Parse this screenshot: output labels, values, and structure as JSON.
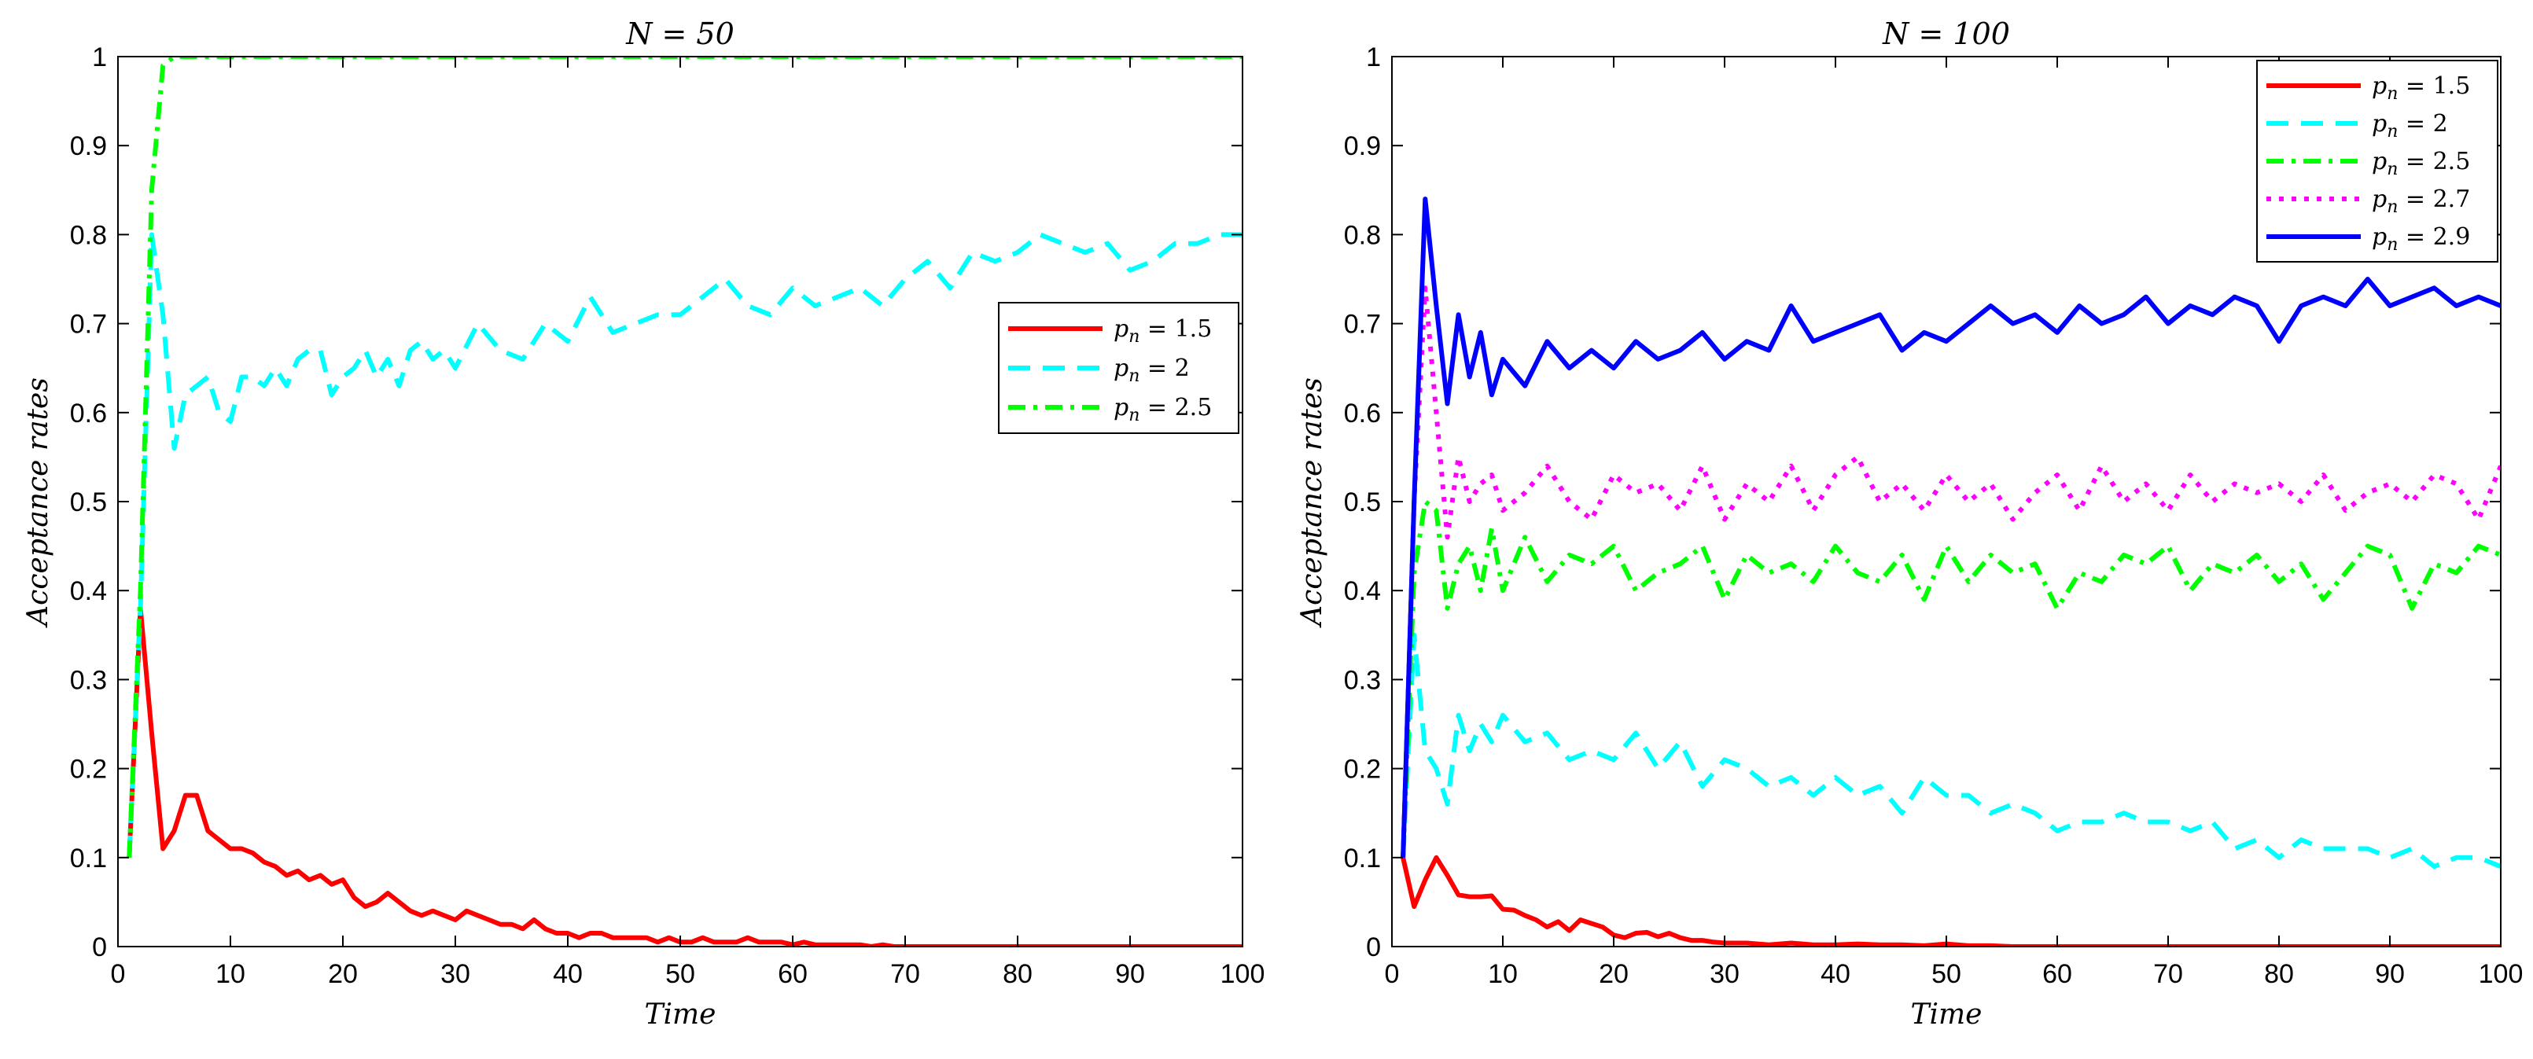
{
  "chart_data": [
    {
      "type": "line",
      "title": "N = 50",
      "xlabel": "Time",
      "ylabel": "Acceptance rates",
      "xlim": [
        0,
        100
      ],
      "ylim": [
        0,
        1
      ],
      "xticks": [
        0,
        10,
        20,
        30,
        40,
        50,
        60,
        70,
        80,
        90,
        100
      ],
      "yticks": [
        0,
        0.1,
        0.2,
        0.3,
        0.4,
        0.5,
        0.6,
        0.7,
        0.8,
        0.9,
        1
      ],
      "grid": false,
      "legend_position": "right",
      "series": [
        {
          "name": "p_n = 1.5",
          "color": "#ff0000",
          "style": "solid",
          "x": [
            1,
            2,
            3,
            4,
            5,
            6,
            7,
            8,
            9,
            10,
            11,
            12,
            13,
            14,
            15,
            16,
            17,
            18,
            19,
            20,
            21,
            22,
            23,
            24,
            25,
            26,
            27,
            28,
            29,
            30,
            31,
            32,
            33,
            34,
            35,
            36,
            37,
            38,
            39,
            40,
            41,
            42,
            43,
            44,
            45,
            46,
            47,
            48,
            49,
            50,
            51,
            52,
            53,
            54,
            55,
            56,
            57,
            58,
            59,
            60,
            61,
            62,
            63,
            64,
            65,
            66,
            67,
            68,
            69,
            70,
            75,
            80,
            85,
            90,
            95,
            100
          ],
          "y": [
            0.1,
            0.38,
            0.24,
            0.11,
            0.13,
            0.17,
            0.17,
            0.13,
            0.12,
            0.11,
            0.11,
            0.105,
            0.095,
            0.09,
            0.08,
            0.085,
            0.075,
            0.08,
            0.07,
            0.075,
            0.055,
            0.045,
            0.05,
            0.06,
            0.05,
            0.04,
            0.035,
            0.04,
            0.035,
            0.03,
            0.04,
            0.035,
            0.03,
            0.025,
            0.025,
            0.02,
            0.03,
            0.02,
            0.015,
            0.015,
            0.01,
            0.015,
            0.015,
            0.01,
            0.01,
            0.01,
            0.01,
            0.005,
            0.01,
            0.005,
            0.005,
            0.01,
            0.005,
            0.005,
            0.005,
            0.01,
            0.005,
            0.005,
            0.005,
            0.002,
            0.005,
            0.002,
            0.002,
            0.002,
            0.002,
            0.002,
            0,
            0.002,
            0,
            0,
            0,
            0,
            0,
            0,
            0,
            0
          ]
        },
        {
          "name": "p_n = 2",
          "color": "#00ffff",
          "style": "dashed",
          "x": [
            1,
            2,
            3,
            4,
            5,
            6,
            7,
            8,
            9,
            10,
            11,
            12,
            13,
            14,
            15,
            16,
            17,
            18,
            19,
            20,
            21,
            22,
            23,
            24,
            25,
            26,
            27,
            28,
            29,
            30,
            32,
            34,
            36,
            38,
            40,
            42,
            44,
            46,
            48,
            50,
            52,
            54,
            56,
            58,
            60,
            62,
            64,
            66,
            68,
            70,
            72,
            74,
            76,
            78,
            80,
            82,
            84,
            86,
            88,
            90,
            92,
            94,
            96,
            98,
            100
          ],
          "y": [
            0.1,
            0.38,
            0.8,
            0.71,
            0.56,
            0.62,
            0.63,
            0.64,
            0.6,
            0.59,
            0.64,
            0.64,
            0.63,
            0.65,
            0.63,
            0.66,
            0.67,
            0.67,
            0.62,
            0.64,
            0.65,
            0.67,
            0.64,
            0.66,
            0.63,
            0.67,
            0.68,
            0.66,
            0.67,
            0.65,
            0.7,
            0.67,
            0.66,
            0.7,
            0.68,
            0.73,
            0.69,
            0.7,
            0.71,
            0.71,
            0.73,
            0.75,
            0.72,
            0.71,
            0.74,
            0.72,
            0.73,
            0.74,
            0.72,
            0.75,
            0.77,
            0.74,
            0.78,
            0.77,
            0.78,
            0.8,
            0.79,
            0.78,
            0.79,
            0.76,
            0.77,
            0.79,
            0.79,
            0.8,
            0.8
          ]
        },
        {
          "name": "p_n = 2.5",
          "color": "#00ff00",
          "style": "dashdot",
          "x": [
            1,
            2,
            3,
            4,
            5,
            6,
            7,
            10,
            20,
            30,
            40,
            50,
            60,
            70,
            80,
            90,
            100
          ],
          "y": [
            0.1,
            0.4,
            0.85,
            0.99,
            1,
            1,
            1,
            1,
            1,
            1,
            1,
            1,
            1,
            1,
            1,
            1,
            1
          ]
        }
      ]
    },
    {
      "type": "line",
      "title": "N = 100",
      "xlabel": "Time",
      "ylabel": "Acceptance rates",
      "xlim": [
        0,
        100
      ],
      "ylim": [
        0,
        1
      ],
      "xticks": [
        0,
        10,
        20,
        30,
        40,
        50,
        60,
        70,
        80,
        90,
        100
      ],
      "yticks": [
        0,
        0.1,
        0.2,
        0.3,
        0.4,
        0.5,
        0.6,
        0.7,
        0.8,
        0.9,
        1
      ],
      "grid": false,
      "legend_position": "top-right",
      "series": [
        {
          "name": "p_n = 1.5",
          "color": "#ff0000",
          "style": "solid",
          "x": [
            1,
            2,
            3,
            4,
            5,
            6,
            7,
            8,
            9,
            10,
            11,
            12,
            13,
            14,
            15,
            16,
            17,
            18,
            19,
            20,
            21,
            22,
            23,
            24,
            25,
            26,
            27,
            28,
            29,
            30,
            32,
            34,
            36,
            38,
            40,
            42,
            44,
            46,
            48,
            50,
            52,
            54,
            56,
            60,
            70,
            80,
            90,
            100
          ],
          "y": [
            0.1,
            0.045,
            0.075,
            0.1,
            0.08,
            0.058,
            0.056,
            0.056,
            0.057,
            0.042,
            0.041,
            0.035,
            0.03,
            0.022,
            0.028,
            0.018,
            0.03,
            0.026,
            0.022,
            0.013,
            0.01,
            0.015,
            0.016,
            0.011,
            0.015,
            0.01,
            0.007,
            0.007,
            0.005,
            0.004,
            0.004,
            0.002,
            0.004,
            0.002,
            0.002,
            0.003,
            0.002,
            0.002,
            0.001,
            0.003,
            0.001,
            0.001,
            0,
            0,
            0,
            0,
            0,
            0
          ]
        },
        {
          "name": "p_n = 2",
          "color": "#00ffff",
          "style": "dashed",
          "x": [
            1,
            2,
            3,
            4,
            5,
            6,
            7,
            8,
            9,
            10,
            12,
            14,
            16,
            18,
            20,
            22,
            24,
            26,
            28,
            30,
            32,
            34,
            36,
            38,
            40,
            42,
            44,
            46,
            48,
            50,
            52,
            54,
            56,
            58,
            60,
            62,
            64,
            66,
            68,
            70,
            72,
            74,
            76,
            78,
            80,
            82,
            84,
            86,
            88,
            90,
            92,
            94,
            96,
            98,
            100
          ],
          "y": [
            0.1,
            0.35,
            0.22,
            0.2,
            0.16,
            0.26,
            0.22,
            0.25,
            0.23,
            0.26,
            0.23,
            0.24,
            0.21,
            0.22,
            0.21,
            0.24,
            0.2,
            0.23,
            0.18,
            0.21,
            0.2,
            0.18,
            0.19,
            0.17,
            0.19,
            0.17,
            0.18,
            0.15,
            0.19,
            0.17,
            0.17,
            0.15,
            0.16,
            0.15,
            0.13,
            0.14,
            0.14,
            0.15,
            0.14,
            0.14,
            0.13,
            0.14,
            0.11,
            0.12,
            0.1,
            0.12,
            0.11,
            0.11,
            0.11,
            0.1,
            0.11,
            0.09,
            0.1,
            0.1,
            0.09
          ]
        },
        {
          "name": "p_n = 2.5",
          "color": "#00ff00",
          "style": "dashdot",
          "x": [
            1,
            2,
            3,
            4,
            5,
            6,
            7,
            8,
            9,
            10,
            12,
            14,
            16,
            18,
            20,
            22,
            24,
            26,
            28,
            30,
            32,
            34,
            36,
            38,
            40,
            42,
            44,
            46,
            48,
            50,
            52,
            54,
            56,
            58,
            60,
            62,
            64,
            66,
            68,
            70,
            72,
            74,
            76,
            78,
            80,
            82,
            84,
            86,
            88,
            90,
            92,
            94,
            96,
            98,
            100
          ],
          "y": [
            0.1,
            0.42,
            0.5,
            0.49,
            0.38,
            0.43,
            0.45,
            0.4,
            0.47,
            0.4,
            0.46,
            0.41,
            0.44,
            0.43,
            0.45,
            0.4,
            0.42,
            0.43,
            0.45,
            0.39,
            0.44,
            0.42,
            0.43,
            0.41,
            0.45,
            0.42,
            0.41,
            0.44,
            0.39,
            0.45,
            0.41,
            0.44,
            0.42,
            0.43,
            0.38,
            0.42,
            0.41,
            0.44,
            0.43,
            0.45,
            0.4,
            0.43,
            0.42,
            0.44,
            0.41,
            0.43,
            0.39,
            0.42,
            0.45,
            0.44,
            0.38,
            0.43,
            0.42,
            0.45,
            0.44
          ]
        },
        {
          "name": "p_n = 2.7",
          "color": "#ff00ff",
          "style": "dotted",
          "x": [
            1,
            2,
            3,
            4,
            5,
            6,
            7,
            8,
            9,
            10,
            12,
            14,
            16,
            18,
            20,
            22,
            24,
            26,
            28,
            30,
            32,
            34,
            36,
            38,
            40,
            42,
            44,
            46,
            48,
            50,
            52,
            54,
            56,
            58,
            60,
            62,
            64,
            66,
            68,
            70,
            72,
            74,
            76,
            78,
            80,
            82,
            84,
            86,
            88,
            90,
            92,
            94,
            96,
            98,
            100
          ],
          "y": [
            0.1,
            0.5,
            0.74,
            0.6,
            0.46,
            0.55,
            0.5,
            0.52,
            0.53,
            0.49,
            0.51,
            0.54,
            0.5,
            0.48,
            0.53,
            0.51,
            0.52,
            0.49,
            0.54,
            0.48,
            0.52,
            0.5,
            0.54,
            0.49,
            0.53,
            0.55,
            0.5,
            0.52,
            0.49,
            0.53,
            0.5,
            0.52,
            0.48,
            0.51,
            0.53,
            0.49,
            0.54,
            0.5,
            0.52,
            0.49,
            0.53,
            0.5,
            0.52,
            0.51,
            0.52,
            0.5,
            0.53,
            0.49,
            0.51,
            0.52,
            0.5,
            0.53,
            0.52,
            0.48,
            0.54
          ]
        },
        {
          "name": "p_n = 2.9",
          "color": "#0000ff",
          "style": "solid",
          "x": [
            1,
            2,
            3,
            4,
            5,
            6,
            7,
            8,
            9,
            10,
            12,
            14,
            16,
            18,
            20,
            22,
            24,
            26,
            28,
            30,
            32,
            34,
            36,
            38,
            40,
            42,
            44,
            46,
            48,
            50,
            52,
            54,
            56,
            58,
            60,
            62,
            64,
            66,
            68,
            70,
            72,
            74,
            76,
            78,
            80,
            82,
            84,
            86,
            88,
            90,
            92,
            94,
            96,
            98,
            100
          ],
          "y": [
            0.1,
            0.5,
            0.84,
            0.72,
            0.61,
            0.71,
            0.64,
            0.69,
            0.62,
            0.66,
            0.63,
            0.68,
            0.65,
            0.67,
            0.65,
            0.68,
            0.66,
            0.67,
            0.69,
            0.66,
            0.68,
            0.67,
            0.72,
            0.68,
            0.69,
            0.7,
            0.71,
            0.67,
            0.69,
            0.68,
            0.7,
            0.72,
            0.7,
            0.71,
            0.69,
            0.72,
            0.7,
            0.71,
            0.73,
            0.7,
            0.72,
            0.71,
            0.73,
            0.72,
            0.68,
            0.72,
            0.73,
            0.72,
            0.75,
            0.72,
            0.73,
            0.74,
            0.72,
            0.73,
            0.72
          ]
        }
      ]
    }
  ]
}
